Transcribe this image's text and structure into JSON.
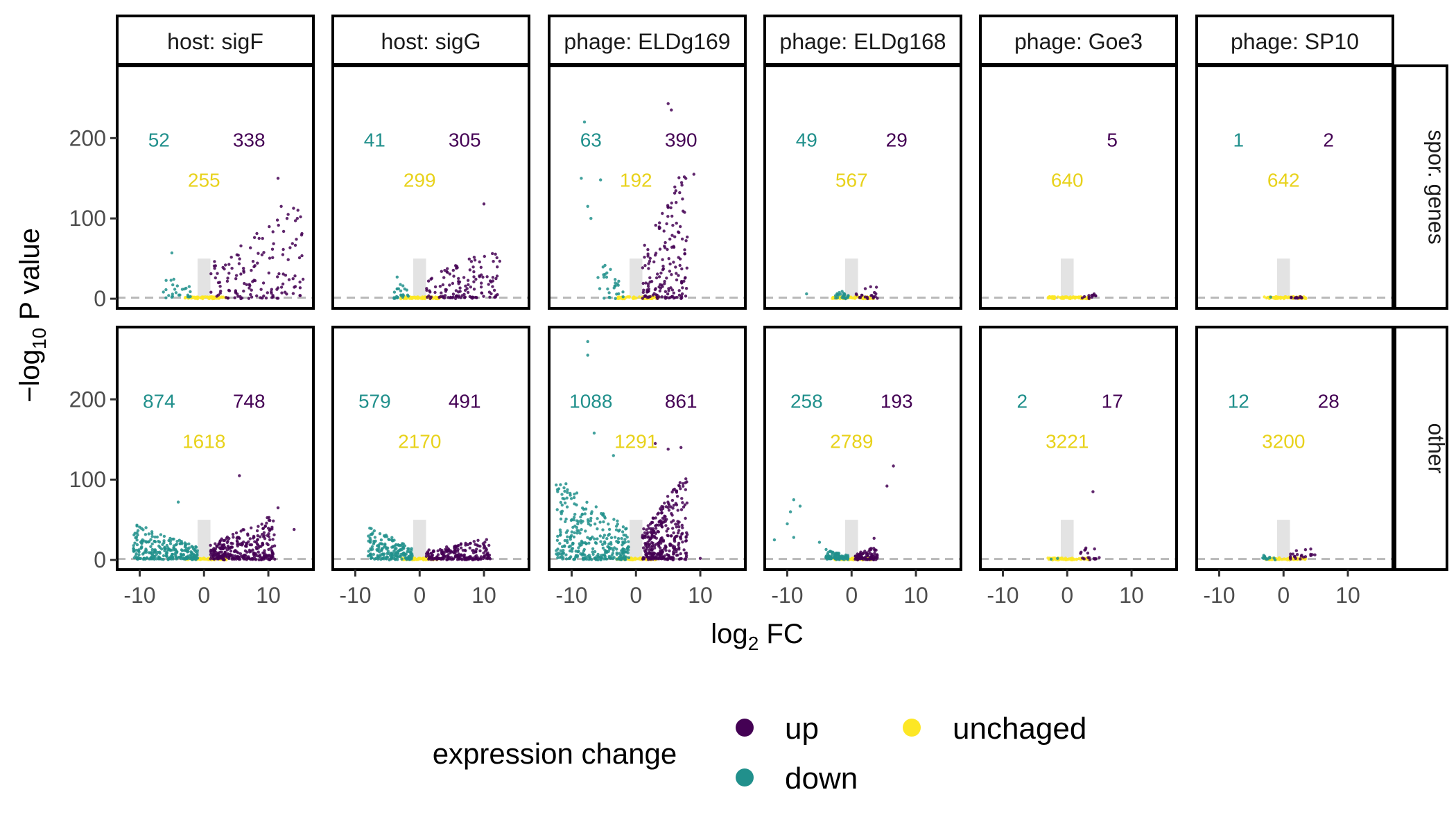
{
  "chart_data": {
    "type": "scatter",
    "subtype": "faceted volcano plot",
    "xlabel": "log",
    "xlabel_sub": "2",
    "xlabel_tail": " FC",
    "ylabel_prefix": "−log",
    "ylabel_sub": "10",
    "ylabel_tail": " P value",
    "x_ticks": [
      "-10",
      "0",
      "10"
    ],
    "y_ticks": [
      "0",
      "100",
      "200"
    ],
    "x_tick_values": [
      -10,
      0,
      10
    ],
    "y_tick_values": [
      0,
      100,
      200
    ],
    "xlim": [
      -13.5,
      17
    ],
    "ylim": [
      -12,
      290
    ],
    "significance_line_y": 1.3,
    "band_x": [
      -1,
      1
    ],
    "band_y_max": 50,
    "grid": false,
    "columns": [
      "host: sigF",
      "host: sigG",
      "phage: ELDg169",
      "phage: ELDg168",
      "phage: Goe3",
      "phage: SP10"
    ],
    "rows": [
      "spor. genes",
      "other"
    ],
    "colors": {
      "up": "#440154",
      "down": "#21908C",
      "unchanged": "#FDE725",
      "band": "#e3e3e3",
      "dashed": "#b8b8b8",
      "axis_text": "#4d4d4d"
    },
    "legend": {
      "title": "expression change",
      "position": "bottom",
      "entries": [
        {
          "key": "up",
          "label": "up"
        },
        {
          "key": "down",
          "label": "down"
        },
        {
          "key": "unchanged",
          "label": "unchaged"
        }
      ]
    },
    "panels": [
      {
        "row": 0,
        "col": 0,
        "down": "52",
        "up": "338",
        "unchanged": "255",
        "down_cluster": {
          "x": [
            -6.5,
            -2
          ],
          "y_max": 40
        },
        "up_cluster": {
          "x": [
            1,
            15.5
          ],
          "y_max": 120
        },
        "outliers": [
          {
            "x": -5,
            "y": 57,
            "c": "down"
          },
          {
            "x": 11.5,
            "y": 150,
            "c": "up"
          },
          {
            "x": 12,
            "y": 115,
            "c": "up"
          },
          {
            "x": 14.5,
            "y": 100,
            "c": "up"
          }
        ]
      },
      {
        "row": 0,
        "col": 1,
        "down": "41",
        "up": "305",
        "unchanged": "299",
        "down_cluster": {
          "x": [
            -4,
            -1.5
          ],
          "y_max": 25
        },
        "up_cluster": {
          "x": [
            1,
            12.5
          ],
          "y_max": 70
        },
        "outliers": [
          {
            "x": 10,
            "y": 118,
            "c": "up"
          },
          {
            "x": -3.5,
            "y": 27,
            "c": "down"
          }
        ]
      },
      {
        "row": 0,
        "col": 2,
        "down": "63",
        "up": "390",
        "unchanged": "192",
        "down_cluster": {
          "x": [
            -6,
            -2
          ],
          "y_max": 55
        },
        "up_cluster": {
          "x": [
            1,
            8
          ],
          "y_max": 175
        },
        "outliers": [
          {
            "x": -8,
            "y": 220,
            "c": "down"
          },
          {
            "x": -8.5,
            "y": 150,
            "c": "down"
          },
          {
            "x": -7.5,
            "y": 115,
            "c": "down"
          },
          {
            "x": -7,
            "y": 100,
            "c": "down"
          },
          {
            "x": -5.5,
            "y": 148,
            "c": "down"
          },
          {
            "x": 5,
            "y": 243,
            "c": "up"
          },
          {
            "x": 5.5,
            "y": 235,
            "c": "up"
          },
          {
            "x": 9,
            "y": 155,
            "c": "up"
          }
        ]
      },
      {
        "row": 0,
        "col": 3,
        "down": "49",
        "up": "29",
        "unchanged": "567",
        "down_cluster": {
          "x": [
            -2.5,
            -0.5
          ],
          "y_max": 12
        },
        "up_cluster": {
          "x": [
            0.5,
            4
          ],
          "y_max": 18
        },
        "outliers": [
          {
            "x": -7,
            "y": 6,
            "c": "down"
          }
        ]
      },
      {
        "row": 0,
        "col": 4,
        "down": "",
        "up": "5",
        "unchanged": "640",
        "down_cluster": null,
        "up_cluster": {
          "x": [
            2,
            4.5
          ],
          "y_max": 6
        },
        "outliers": []
      },
      {
        "row": 0,
        "col": 5,
        "down": "1",
        "up": "2",
        "unchanged": "642",
        "down_cluster": null,
        "up_cluster": {
          "x": [
            1,
            3
          ],
          "y_max": 2
        },
        "outliers": [
          {
            "x": -2,
            "y": 2,
            "c": "down"
          }
        ]
      },
      {
        "row": 1,
        "col": 0,
        "down": "874",
        "up": "748",
        "unchanged": "1618",
        "down_cluster": {
          "x": [
            -11,
            -1
          ],
          "y_max": 45
        },
        "up_cluster": {
          "x": [
            1,
            11
          ],
          "y_max": 55
        },
        "outliers": [
          {
            "x": -4,
            "y": 72,
            "c": "down"
          },
          {
            "x": 5.5,
            "y": 105,
            "c": "up"
          },
          {
            "x": 11.5,
            "y": 65,
            "c": "up"
          },
          {
            "x": 14,
            "y": 38,
            "c": "up"
          }
        ]
      },
      {
        "row": 1,
        "col": 1,
        "down": "579",
        "up": "491",
        "unchanged": "2170",
        "down_cluster": {
          "x": [
            -8,
            -1
          ],
          "y_max": 40
        },
        "up_cluster": {
          "x": [
            1,
            11
          ],
          "y_max": 28
        },
        "outliers": [
          {
            "x": -8,
            "y": 5,
            "c": "down"
          }
        ]
      },
      {
        "row": 1,
        "col": 2,
        "down": "1088",
        "up": "861",
        "unchanged": "1291",
        "down_cluster": {
          "x": [
            -12.5,
            -1
          ],
          "y_max": 105
        },
        "up_cluster": {
          "x": [
            1,
            8
          ],
          "y_max": 110
        },
        "outliers": [
          {
            "x": -7.5,
            "y": 272,
            "c": "down"
          },
          {
            "x": -7.5,
            "y": 255,
            "c": "down"
          },
          {
            "x": -6.5,
            "y": 158,
            "c": "down"
          },
          {
            "x": -3.5,
            "y": 130,
            "c": "down"
          },
          {
            "x": 3,
            "y": 145,
            "c": "up"
          },
          {
            "x": 5,
            "y": 138,
            "c": "up"
          },
          {
            "x": 7,
            "y": 140,
            "c": "up"
          },
          {
            "x": 10,
            "y": 2,
            "c": "up"
          }
        ]
      },
      {
        "row": 1,
        "col": 3,
        "down": "258",
        "up": "193",
        "unchanged": "2789",
        "down_cluster": {
          "x": [
            -4,
            -0.5
          ],
          "y_max": 12
        },
        "up_cluster": {
          "x": [
            0.5,
            4
          ],
          "y_max": 16
        },
        "outliers": [
          {
            "x": -9,
            "y": 75,
            "c": "down"
          },
          {
            "x": -9.5,
            "y": 60,
            "c": "down"
          },
          {
            "x": -8,
            "y": 67,
            "c": "down"
          },
          {
            "x": -10,
            "y": 45,
            "c": "down"
          },
          {
            "x": -12,
            "y": 25,
            "c": "down"
          },
          {
            "x": -9,
            "y": 28,
            "c": "down"
          },
          {
            "x": -5,
            "y": 22,
            "c": "down"
          },
          {
            "x": 6.5,
            "y": 117,
            "c": "up"
          },
          {
            "x": 5.5,
            "y": 92,
            "c": "up"
          },
          {
            "x": 3.5,
            "y": 27,
            "c": "up"
          }
        ]
      },
      {
        "row": 1,
        "col": 4,
        "down": "2",
        "up": "17",
        "unchanged": "3221",
        "down_cluster": null,
        "up_cluster": {
          "x": [
            2,
            5
          ],
          "y_max": 30
        },
        "outliers": [
          {
            "x": -1.5,
            "y": 2,
            "c": "down"
          },
          {
            "x": -2.5,
            "y": 1,
            "c": "down"
          },
          {
            "x": 4,
            "y": 85,
            "c": "up"
          }
        ]
      },
      {
        "row": 1,
        "col": 5,
        "down": "12",
        "up": "28",
        "unchanged": "3200",
        "down_cluster": {
          "x": [
            -3.5,
            -1
          ],
          "y_max": 5
        },
        "up_cluster": {
          "x": [
            1,
            5
          ],
          "y_max": 25
        },
        "outliers": []
      }
    ]
  }
}
